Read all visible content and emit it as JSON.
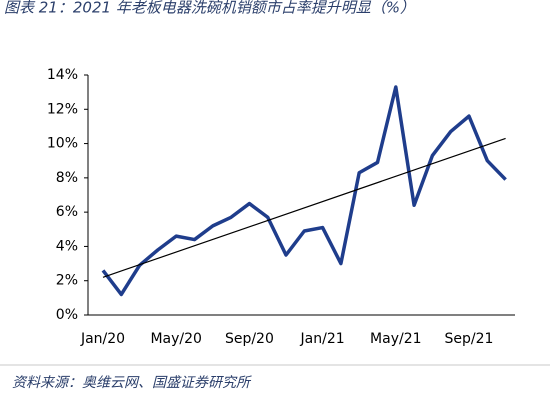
{
  "chart_data": {
    "type": "line",
    "title": "图表 21：2021 年老板电器洗碗机销额市占率提升明显（%）",
    "source": "资料来源：奥维云网、国盛证券研究所",
    "categories": [
      "Jan/20",
      null,
      null,
      null,
      "May/20",
      null,
      null,
      null,
      "Sep/20",
      null,
      null,
      null,
      "Jan/21",
      null,
      null,
      null,
      "May/21",
      null,
      null,
      null,
      "Sep/21",
      null,
      null
    ],
    "series": [
      {
        "color": "#1f3d8c",
        "values": [
          2.6,
          1.2,
          2.9,
          3.8,
          4.6,
          4.4,
          5.2,
          5.7,
          6.5,
          5.7,
          3.5,
          4.9,
          5.1,
          3.0,
          8.3,
          8.9,
          13.3,
          6.4,
          9.3,
          10.7,
          11.6,
          9.0,
          7.9
        ]
      }
    ],
    "trendline": {
      "start": 2.2,
      "end": 10.3,
      "color": "#000000"
    },
    "ylim": [
      0,
      14
    ],
    "yticks": [
      {
        "value": 0,
        "label": "0%"
      },
      {
        "value": 2,
        "label": "2%"
      },
      {
        "value": 4,
        "label": "4%"
      },
      {
        "value": 6,
        "label": "6%"
      },
      {
        "value": 8,
        "label": "8%"
      },
      {
        "value": 10,
        "label": "10%"
      },
      {
        "value": 12,
        "label": "12%"
      },
      {
        "value": 14,
        "label": "14%"
      }
    ]
  }
}
